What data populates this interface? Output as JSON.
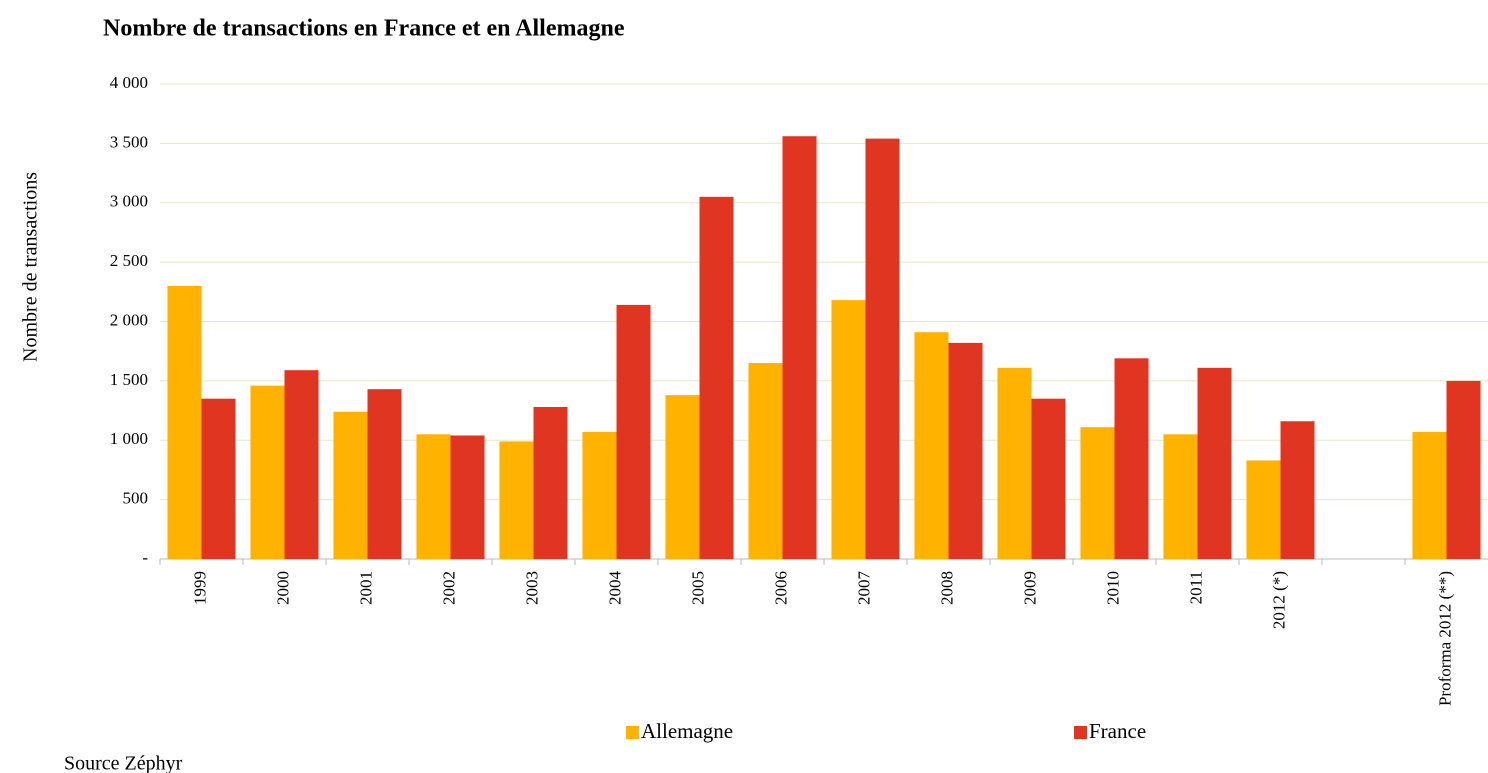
{
  "chart_data": {
    "type": "bar",
    "title": "Nombre de transactions en France et en Allemagne",
    "y_label": "Nombre de transactions",
    "categories": [
      "1999",
      "2000",
      "2001",
      "2002",
      "2003",
      "2004",
      "2005",
      "2006",
      "2007",
      "2008",
      "2009",
      "2010",
      "2011",
      "2012 (*)",
      null,
      "Proforma 2012 (**)"
    ],
    "series": [
      {
        "name": "Allemagne",
        "color": "#ffb300",
        "values": [
          2300,
          1460,
          1240,
          1050,
          990,
          1070,
          1380,
          1650,
          2180,
          1910,
          1610,
          1110,
          1050,
          830,
          null,
          1070
        ]
      },
      {
        "name": "France",
        "color": "#e03520",
        "values": [
          1350,
          1590,
          1430,
          1040,
          1280,
          2140,
          3050,
          3560,
          3540,
          1820,
          1350,
          1690,
          1610,
          1160,
          null,
          1500
        ]
      }
    ],
    "ylim": [
      0,
      4000
    ],
    "yticks": [
      {
        "value": 0,
        "label": "-"
      },
      500,
      {
        "value": 1000,
        "label": "1 000"
      },
      {
        "value": 1500,
        "label": "1 500"
      },
      {
        "value": 2000,
        "label": "2 000"
      },
      {
        "value": 2500,
        "label": "2 500"
      },
      {
        "value": 3000,
        "label": "3 000"
      },
      {
        "value": 3500,
        "label": "3 500"
      },
      {
        "value": 4000,
        "label": "4 000"
      }
    ],
    "grid": true,
    "legend": "bottom",
    "source": "Source Zéphyr"
  }
}
